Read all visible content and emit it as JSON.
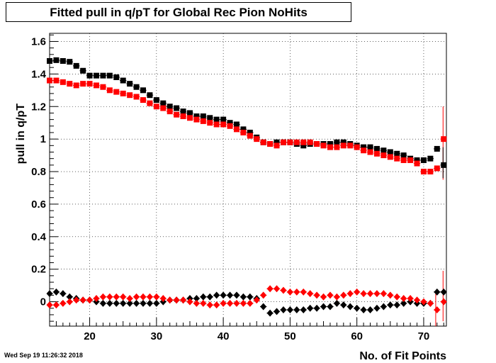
{
  "stamp": "Wed Sep 19 11:26:32 2018",
  "chart_data": {
    "type": "scatter",
    "title": "Fitted pull in q/pT for Global Rec Pion NoHits",
    "xlabel": "No. of Fit Points",
    "ylabel": "pull in q/pT",
    "xlim": [
      14,
      73.4
    ],
    "ylim": [
      -0.15,
      1.65
    ],
    "xticks": [
      20,
      30,
      40,
      50,
      60,
      70
    ],
    "yticks": [
      0,
      0.2,
      0.4,
      0.6,
      0.8,
      1,
      1.2,
      1.4,
      1.6
    ],
    "ytick_labels": [
      "0",
      "0.2",
      "0.4",
      "0.6",
      "0.8",
      "1",
      "1.2",
      "1.4",
      "1.6"
    ],
    "grid": true,
    "colors": {
      "black": "#000000",
      "red": "#ff0000"
    },
    "series": [
      {
        "marker": "square",
        "color": "#000000",
        "x": [
          14,
          15,
          16,
          17,
          18,
          19,
          20,
          21,
          22,
          23,
          24,
          25,
          26,
          27,
          28,
          29,
          30,
          31,
          32,
          33,
          34,
          35,
          36,
          37,
          38,
          39,
          40,
          41,
          42,
          43,
          44,
          45,
          46,
          47,
          48,
          49,
          50,
          51,
          52,
          53,
          54,
          55,
          56,
          57,
          58,
          59,
          60,
          61,
          62,
          63,
          64,
          65,
          66,
          67,
          68,
          69,
          70,
          71,
          72,
          73
        ],
        "y": [
          1.48,
          1.485,
          1.48,
          1.475,
          1.45,
          1.42,
          1.39,
          1.39,
          1.39,
          1.39,
          1.38,
          1.36,
          1.34,
          1.32,
          1.3,
          1.27,
          1.24,
          1.22,
          1.2,
          1.19,
          1.17,
          1.16,
          1.14,
          1.14,
          1.13,
          1.12,
          1.12,
          1.1,
          1.09,
          1.06,
          1.04,
          1.01,
          0.98,
          0.97,
          0.98,
          0.98,
          0.98,
          0.97,
          0.96,
          0.97,
          0.97,
          0.97,
          0.97,
          0.98,
          0.98,
          0.97,
          0.96,
          0.95,
          0.95,
          0.94,
          0.93,
          0.92,
          0.91,
          0.9,
          0.88,
          0.87,
          0.87,
          0.88,
          0.94,
          0.84
        ]
      },
      {
        "marker": "square",
        "color": "#ff0000",
        "x": [
          14,
          15,
          16,
          17,
          18,
          19,
          20,
          21,
          22,
          23,
          24,
          25,
          26,
          27,
          28,
          29,
          30,
          31,
          32,
          33,
          34,
          35,
          36,
          37,
          38,
          39,
          40,
          41,
          42,
          43,
          44,
          45,
          46,
          47,
          48,
          49,
          50,
          51,
          52,
          53,
          54,
          55,
          56,
          57,
          58,
          59,
          60,
          61,
          62,
          63,
          64,
          65,
          66,
          67,
          68,
          69,
          70,
          71,
          72,
          73
        ],
        "y": [
          1.36,
          1.36,
          1.35,
          1.34,
          1.33,
          1.34,
          1.34,
          1.33,
          1.32,
          1.3,
          1.29,
          1.28,
          1.27,
          1.26,
          1.24,
          1.22,
          1.2,
          1.19,
          1.17,
          1.15,
          1.14,
          1.13,
          1.12,
          1.11,
          1.1,
          1.09,
          1.09,
          1.08,
          1.06,
          1.04,
          1.02,
          1.0,
          0.98,
          0.97,
          0.96,
          0.98,
          0.98,
          0.98,
          0.98,
          0.98,
          0.97,
          0.96,
          0.95,
          0.95,
          0.96,
          0.96,
          0.95,
          0.93,
          0.92,
          0.91,
          0.9,
          0.89,
          0.88,
          0.87,
          0.87,
          0.85,
          0.8,
          0.8,
          0.82,
          1.0
        ]
      },
      {
        "marker": "diamond",
        "color": "#000000",
        "x": [
          14,
          15,
          16,
          17,
          18,
          19,
          20,
          21,
          22,
          23,
          24,
          25,
          26,
          27,
          28,
          29,
          30,
          31,
          32,
          33,
          34,
          35,
          36,
          37,
          38,
          39,
          40,
          41,
          42,
          43,
          44,
          45,
          46,
          47,
          48,
          49,
          50,
          51,
          52,
          53,
          54,
          55,
          56,
          57,
          58,
          59,
          60,
          61,
          62,
          63,
          64,
          65,
          66,
          67,
          68,
          69,
          70,
          71,
          72,
          73
        ],
        "y": [
          0.05,
          0.06,
          0.05,
          0.03,
          0.02,
          0.01,
          0.01,
          0.0,
          -0.01,
          -0.01,
          -0.01,
          -0.01,
          -0.01,
          -0.01,
          -0.01,
          -0.01,
          -0.01,
          0.0,
          0.01,
          0.01,
          0.01,
          0.02,
          0.02,
          0.03,
          0.03,
          0.04,
          0.04,
          0.04,
          0.04,
          0.03,
          0.03,
          0.02,
          -0.03,
          -0.07,
          -0.06,
          -0.05,
          -0.05,
          -0.05,
          -0.05,
          -0.04,
          -0.04,
          -0.03,
          -0.03,
          -0.01,
          -0.02,
          -0.03,
          -0.04,
          -0.05,
          -0.05,
          -0.04,
          -0.03,
          -0.02,
          -0.02,
          -0.01,
          0.0,
          -0.01,
          -0.01,
          -0.01,
          0.06,
          0.06
        ]
      },
      {
        "marker": "diamond",
        "color": "#ff0000",
        "x": [
          14,
          15,
          16,
          17,
          18,
          19,
          20,
          21,
          22,
          23,
          24,
          25,
          26,
          27,
          28,
          29,
          30,
          31,
          32,
          33,
          34,
          35,
          36,
          37,
          38,
          39,
          40,
          41,
          42,
          43,
          44,
          45,
          46,
          47,
          48,
          49,
          50,
          51,
          52,
          53,
          54,
          55,
          56,
          57,
          58,
          59,
          60,
          61,
          62,
          63,
          64,
          65,
          66,
          67,
          68,
          69,
          70,
          71,
          72,
          73
        ],
        "y": [
          -0.02,
          -0.02,
          -0.01,
          0.0,
          0.01,
          0.01,
          0.01,
          0.02,
          0.03,
          0.03,
          0.03,
          0.03,
          0.02,
          0.03,
          0.03,
          0.03,
          0.03,
          0.02,
          0.01,
          0.01,
          0.01,
          0.0,
          -0.01,
          -0.01,
          -0.02,
          -0.02,
          -0.01,
          -0.01,
          -0.01,
          -0.01,
          -0.01,
          0.01,
          0.04,
          0.08,
          0.08,
          0.07,
          0.06,
          0.06,
          0.06,
          0.05,
          0.04,
          0.03,
          0.04,
          0.03,
          0.04,
          0.05,
          0.06,
          0.05,
          0.05,
          0.05,
          0.05,
          0.04,
          0.03,
          0.02,
          0.02,
          0.01,
          0.0,
          -0.01,
          -0.05,
          0.0
        ]
      }
    ]
  }
}
